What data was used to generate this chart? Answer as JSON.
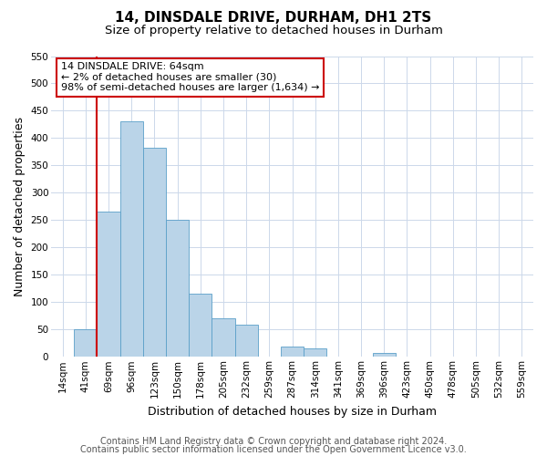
{
  "title": "14, DINSDALE DRIVE, DURHAM, DH1 2TS",
  "subtitle": "Size of property relative to detached houses in Durham",
  "xlabel": "Distribution of detached houses by size in Durham",
  "ylabel": "Number of detached properties",
  "bar_labels": [
    "14sqm",
    "41sqm",
    "69sqm",
    "96sqm",
    "123sqm",
    "150sqm",
    "178sqm",
    "205sqm",
    "232sqm",
    "259sqm",
    "287sqm",
    "314sqm",
    "341sqm",
    "369sqm",
    "396sqm",
    "423sqm",
    "450sqm",
    "478sqm",
    "505sqm",
    "532sqm",
    "559sqm"
  ],
  "bar_values": [
    0,
    50,
    265,
    430,
    383,
    250,
    115,
    70,
    58,
    0,
    18,
    15,
    0,
    0,
    7,
    0,
    0,
    1,
    0,
    0,
    1
  ],
  "bar_color": "#bad4e8",
  "bar_edge_color": "#5a9fc8",
  "vline_x_index": 2,
  "vline_color": "#cc0000",
  "ylim": [
    0,
    550
  ],
  "yticks": [
    0,
    50,
    100,
    150,
    200,
    250,
    300,
    350,
    400,
    450,
    500,
    550
  ],
  "annotation_text": "14 DINSDALE DRIVE: 64sqm\n← 2% of detached houses are smaller (30)\n98% of semi-detached houses are larger (1,634) →",
  "annotation_box_color": "#ffffff",
  "annotation_box_edge_color": "#cc0000",
  "footer1": "Contains HM Land Registry data © Crown copyright and database right 2024.",
  "footer2": "Contains public sector information licensed under the Open Government Licence v3.0.",
  "background_color": "#ffffff",
  "grid_color": "#ccd8ea",
  "title_fontsize": 11,
  "subtitle_fontsize": 9.5,
  "axis_label_fontsize": 9,
  "tick_fontsize": 7.5,
  "annotation_fontsize": 8,
  "footer_fontsize": 7
}
